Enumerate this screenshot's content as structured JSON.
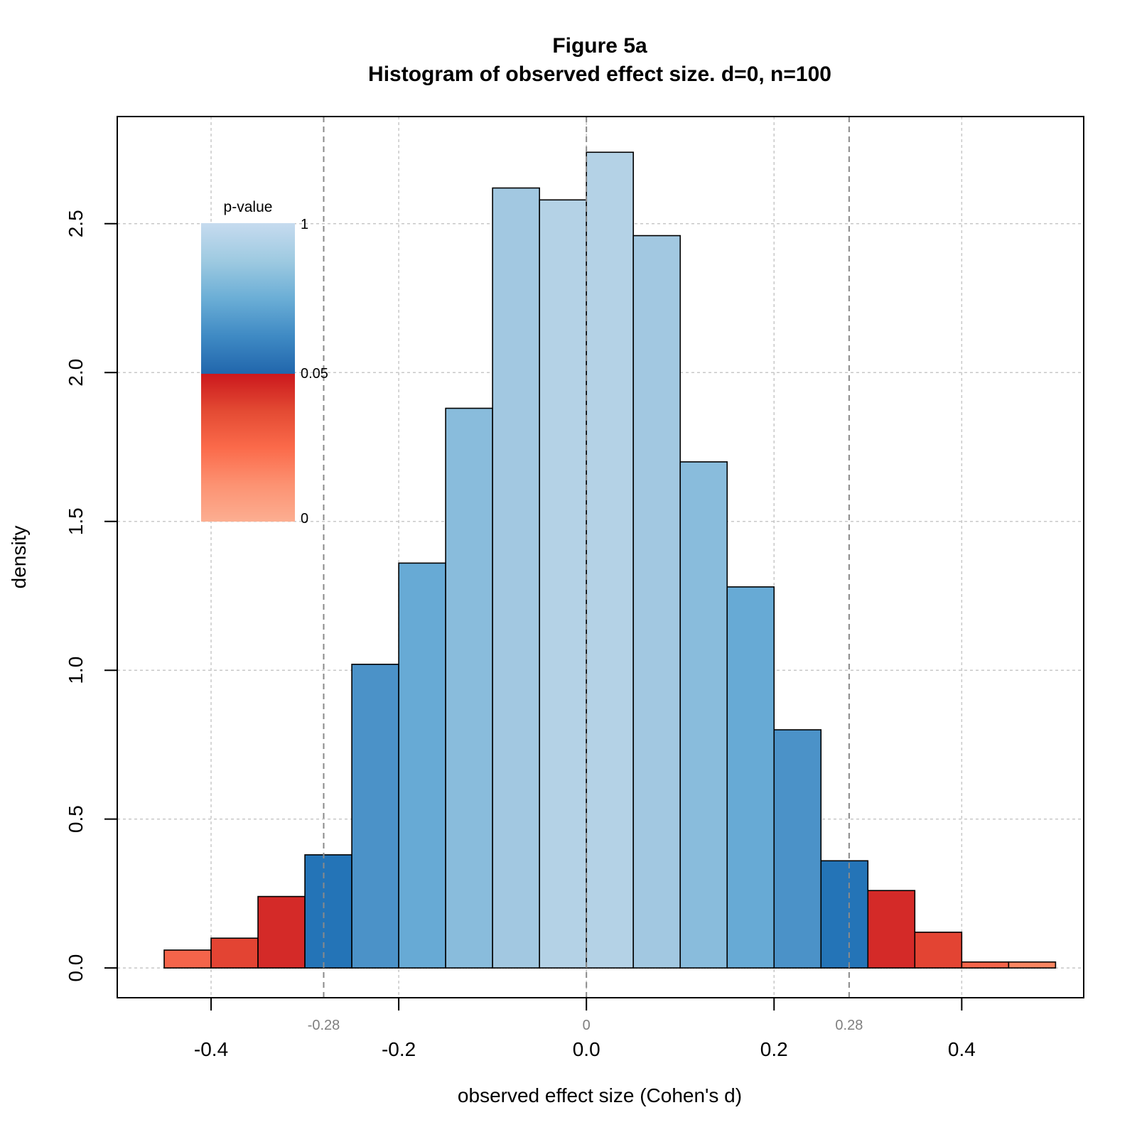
{
  "chart_data": {
    "type": "bar",
    "title": "Figure 5a",
    "subtitle": "Histogram of observed effect size. d=0, n=100",
    "xlabel": "observed effect size (Cohen's d)",
    "ylabel": "density",
    "xlim": [
      -0.5,
      0.53
    ],
    "ylim": [
      -0.1,
      2.86
    ],
    "x_ticks": [
      -0.4,
      -0.2,
      0.0,
      0.2,
      0.4
    ],
    "x_tick_labels": [
      "-0.4",
      "-0.2",
      "0.0",
      "0.2",
      "0.4"
    ],
    "y_ticks": [
      0.0,
      0.5,
      1.0,
      1.5,
      2.0,
      2.5
    ],
    "y_tick_labels": [
      "0.0",
      "0.5",
      "1.0",
      "1.5",
      "2.0",
      "2.5"
    ],
    "grid": true,
    "bins": [
      {
        "x0": -0.45,
        "x1": -0.4,
        "density": 0.06,
        "color": "#f4644a"
      },
      {
        "x0": -0.4,
        "x1": -0.35,
        "density": 0.1,
        "color": "#e34433"
      },
      {
        "x0": -0.35,
        "x1": -0.3,
        "density": 0.24,
        "color": "#d42a28"
      },
      {
        "x0": -0.3,
        "x1": -0.25,
        "density": 0.38,
        "color": "#2474b7"
      },
      {
        "x0": -0.25,
        "x1": -0.2,
        "density": 1.02,
        "color": "#4b92c8"
      },
      {
        "x0": -0.2,
        "x1": -0.15,
        "density": 1.36,
        "color": "#67aad5"
      },
      {
        "x0": -0.15,
        "x1": -0.1,
        "density": 1.88,
        "color": "#89bcdc"
      },
      {
        "x0": -0.1,
        "x1": -0.05,
        "density": 2.62,
        "color": "#a2c8e1"
      },
      {
        "x0": -0.05,
        "x1": 0.0,
        "density": 2.58,
        "color": "#b4d2e6"
      },
      {
        "x0": 0.0,
        "x1": 0.05,
        "density": 2.74,
        "color": "#b4d2e6"
      },
      {
        "x0": 0.05,
        "x1": 0.1,
        "density": 2.46,
        "color": "#a2c8e1"
      },
      {
        "x0": 0.1,
        "x1": 0.15,
        "density": 1.7,
        "color": "#89bcdc"
      },
      {
        "x0": 0.15,
        "x1": 0.2,
        "density": 1.28,
        "color": "#67aad5"
      },
      {
        "x0": 0.2,
        "x1": 0.25,
        "density": 0.8,
        "color": "#4b92c8"
      },
      {
        "x0": 0.25,
        "x1": 0.3,
        "density": 0.36,
        "color": "#2474b7"
      },
      {
        "x0": 0.3,
        "x1": 0.35,
        "density": 0.26,
        "color": "#d42a28"
      },
      {
        "x0": 0.35,
        "x1": 0.4,
        "density": 0.12,
        "color": "#e34433"
      },
      {
        "x0": 0.4,
        "x1": 0.45,
        "density": 0.02,
        "color": "#f4644a"
      },
      {
        "x0": 0.45,
        "x1": 0.5,
        "density": 0.02,
        "color": "#fa8561"
      }
    ],
    "reference_lines": [
      {
        "x": -0.28,
        "label": "-0.28"
      },
      {
        "x": 0,
        "label": "0"
      },
      {
        "x": 0.28,
        "label": "0.28"
      }
    ],
    "legend": {
      "title": "p-value",
      "position": "top-left",
      "labels": [
        "1",
        "0.05",
        "0"
      ],
      "blue_gradient": [
        "#c6dbef",
        "#9ecae1",
        "#6baed6",
        "#3f8ac4",
        "#2166ac"
      ],
      "red_gradient": [
        "#cb181d",
        "#e34a33",
        "#fb6a4a",
        "#fc9272",
        "#fcae91"
      ]
    }
  }
}
